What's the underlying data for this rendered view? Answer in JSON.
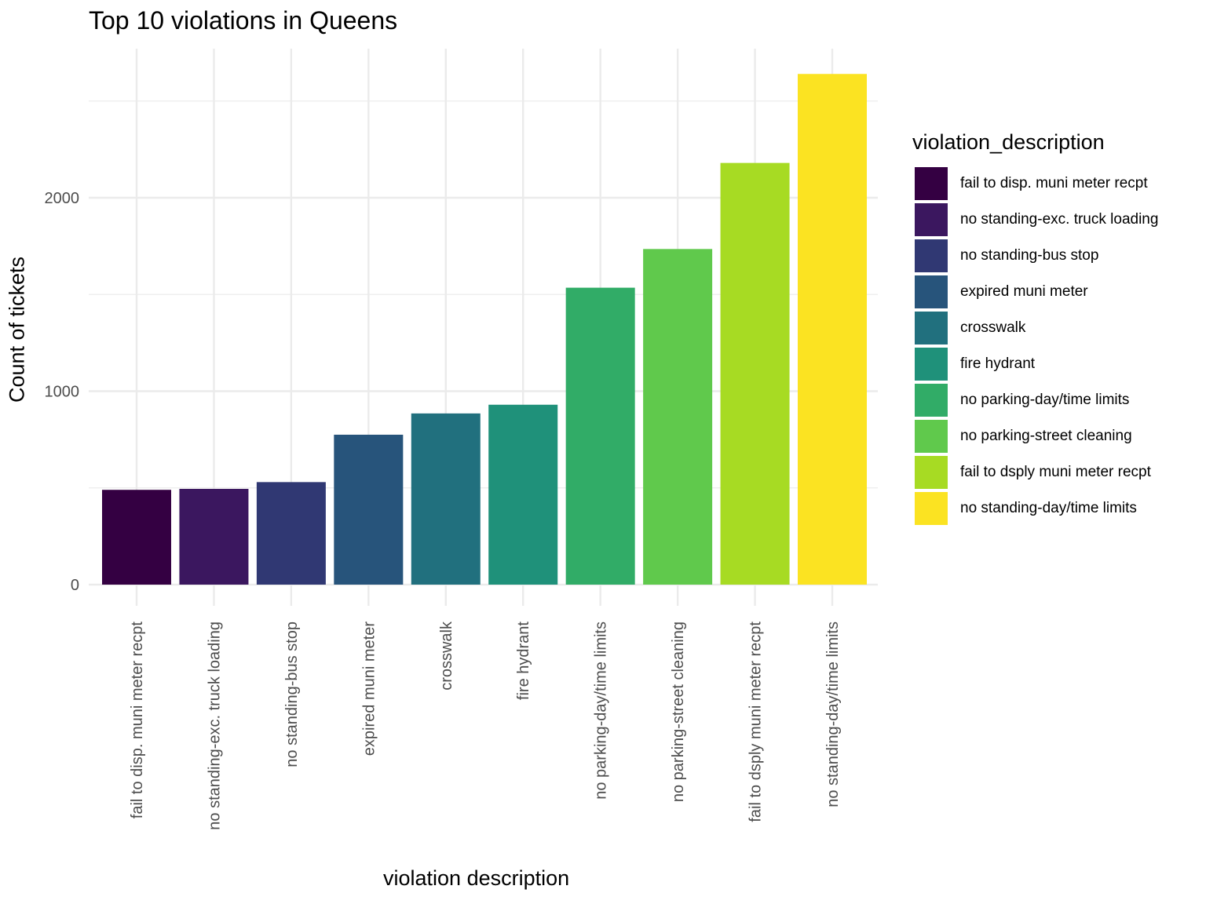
{
  "chart_data": {
    "type": "bar",
    "title": "Top 10 violations in Queens",
    "xlabel": "violation description",
    "ylabel": "Count of tickets",
    "categories": [
      "fail to disp. muni meter recpt",
      "no standing-exc. truck loading",
      "no standing-bus stop",
      "expired muni meter",
      "crosswalk",
      "fire hydrant",
      "no parking-day/time limits",
      "no parking-street cleaning",
      "fail to dsply muni meter recpt",
      "no standing-day/time limits"
    ],
    "values": [
      490,
      495,
      530,
      775,
      885,
      930,
      1535,
      1735,
      2180,
      2640
    ],
    "colors": [
      "#340042",
      "#3B175F",
      "#303873",
      "#27547B",
      "#21707E",
      "#1F917A",
      "#31AC67",
      "#60C94C",
      "#A7DB23",
      "#FBE322"
    ],
    "ylim": [
      0,
      2750
    ],
    "yticks": [
      0,
      1000,
      2000
    ],
    "ytick_labels": [
      "0",
      "1000",
      "2000"
    ],
    "grid": true,
    "legend": {
      "title": "violation_description",
      "position": "right"
    }
  }
}
